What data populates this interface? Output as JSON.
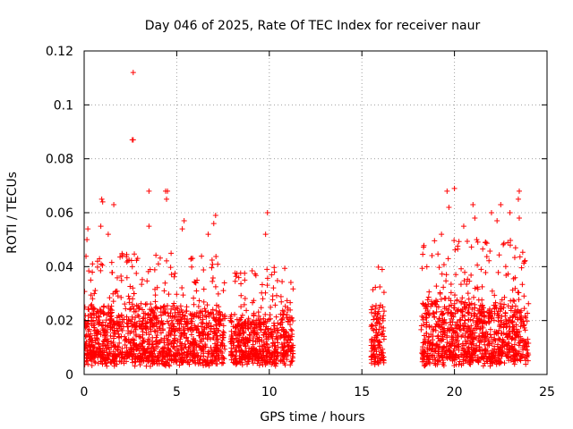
{
  "chart_data": {
    "type": "scatter",
    "title": "Day 046 of 2025, Rate Of TEC Index for receiver naur",
    "xlabel": "GPS time / hours",
    "ylabel": "ROTI / TECUs",
    "xlim": [
      0,
      25
    ],
    "ylim": [
      0,
      0.12
    ],
    "xticks": [
      0,
      5,
      10,
      15,
      20,
      25
    ],
    "xtick_labels": [
      "0",
      "5",
      "10",
      "15",
      "20",
      "25"
    ],
    "yticks": [
      0,
      0.02,
      0.04,
      0.06,
      0.08,
      0.1,
      0.12
    ],
    "ytick_labels": [
      "0",
      "0.02",
      "0.04",
      "0.06",
      "0.08",
      "0.1",
      "0.12"
    ],
    "grid": true,
    "marker": "plus",
    "color": "#ff0000",
    "segments": [
      {
        "start": 0.0,
        "end": 7.6,
        "base": 0.016,
        "spread": 0.02,
        "peak": 0.045
      },
      {
        "start": 7.9,
        "end": 10.5,
        "base": 0.015,
        "spread": 0.016,
        "peak": 0.04
      },
      {
        "start": 10.6,
        "end": 11.3,
        "base": 0.016,
        "spread": 0.02,
        "peak": 0.04
      },
      {
        "start": 15.5,
        "end": 16.2,
        "base": 0.016,
        "spread": 0.02,
        "peak": 0.04
      },
      {
        "start": 18.2,
        "end": 24.0,
        "base": 0.017,
        "spread": 0.022,
        "peak": 0.05
      }
    ],
    "outliers": [
      {
        "x": 2.65,
        "y": 0.112
      },
      {
        "x": 2.6,
        "y": 0.087
      },
      {
        "x": 2.65,
        "y": 0.087
      },
      {
        "x": 3.5,
        "y": 0.068
      },
      {
        "x": 4.4,
        "y": 0.068
      },
      {
        "x": 4.5,
        "y": 0.068
      },
      {
        "x": 4.45,
        "y": 0.065
      },
      {
        "x": 0.95,
        "y": 0.065
      },
      {
        "x": 1.0,
        "y": 0.064
      },
      {
        "x": 1.6,
        "y": 0.063
      },
      {
        "x": 20.0,
        "y": 0.069
      },
      {
        "x": 19.6,
        "y": 0.068
      },
      {
        "x": 23.5,
        "y": 0.068
      },
      {
        "x": 23.45,
        "y": 0.065
      },
      {
        "x": 21.0,
        "y": 0.063
      },
      {
        "x": 9.9,
        "y": 0.06
      },
      {
        "x": 7.1,
        "y": 0.059
      },
      {
        "x": 5.4,
        "y": 0.057
      },
      {
        "x": 0.2,
        "y": 0.054
      },
      {
        "x": 0.9,
        "y": 0.055
      },
      {
        "x": 3.5,
        "y": 0.055
      },
      {
        "x": 5.3,
        "y": 0.054
      },
      {
        "x": 19.7,
        "y": 0.062
      },
      {
        "x": 22.0,
        "y": 0.06
      },
      {
        "x": 22.5,
        "y": 0.063
      },
      {
        "x": 23.0,
        "y": 0.06
      },
      {
        "x": 21.1,
        "y": 0.058
      },
      {
        "x": 20.5,
        "y": 0.055
      },
      {
        "x": 22.3,
        "y": 0.057
      },
      {
        "x": 23.5,
        "y": 0.058
      },
      {
        "x": 6.7,
        "y": 0.052
      },
      {
        "x": 9.8,
        "y": 0.052
      },
      {
        "x": 1.3,
        "y": 0.052
      },
      {
        "x": 19.3,
        "y": 0.052
      },
      {
        "x": 21.2,
        "y": 0.05
      },
      {
        "x": 23.3,
        "y": 0.047
      },
      {
        "x": 0.15,
        "y": 0.05
      },
      {
        "x": 7.0,
        "y": 0.056
      }
    ]
  }
}
